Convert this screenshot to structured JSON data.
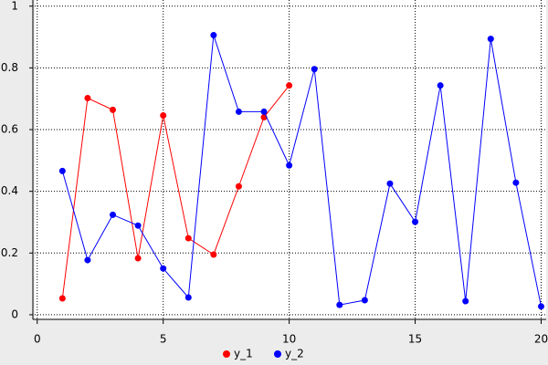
{
  "chart_data": {
    "type": "line",
    "x": [
      1,
      2,
      3,
      4,
      5,
      6,
      7,
      8,
      9,
      10,
      11,
      12,
      13,
      14,
      15,
      16,
      17,
      18,
      19,
      20
    ],
    "series": [
      {
        "name": "y_1",
        "color": "#ff0000",
        "values": [
          0.053,
          0.702,
          0.664,
          0.183,
          0.646,
          0.248,
          0.195,
          0.416,
          0.64,
          0.743,
          null,
          null,
          null,
          null,
          null,
          null,
          null,
          null,
          null,
          null
        ]
      },
      {
        "name": "y_2",
        "color": "#0000ff",
        "values": [
          0.466,
          0.177,
          0.324,
          0.289,
          0.15,
          0.056,
          0.906,
          0.658,
          0.658,
          0.484,
          0.796,
          0.032,
          0.047,
          0.425,
          0.301,
          0.743,
          0.044,
          0.894,
          0.428,
          0.027
        ]
      }
    ],
    "xlim": [
      -0.1,
      20.2
    ],
    "ylim": [
      -0.015,
      1.02
    ],
    "xticks": [
      0,
      5,
      10,
      15,
      20
    ],
    "yticks": [
      0,
      0.2,
      0.4,
      0.6,
      0.8,
      1
    ],
    "grid": true,
    "legend": "bottom"
  }
}
